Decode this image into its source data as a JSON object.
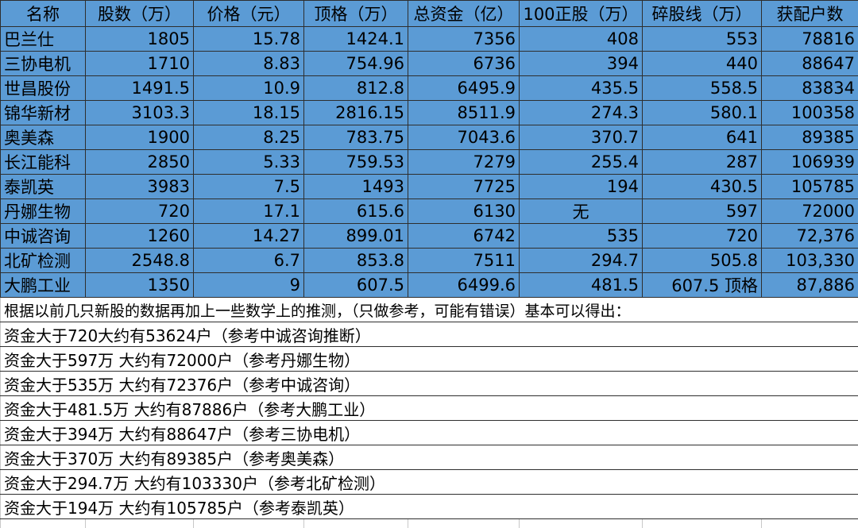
{
  "headers": [
    "名称",
    "股数（万）",
    "价格（元）",
    "顶格（万）",
    "总资金（亿）",
    "100正股（万）",
    "碎股线（万）",
    "获配户数"
  ],
  "rows": [
    [
      "巴兰仕",
      "1805",
      "15.78",
      "1424.1",
      "7356",
      "408",
      "553",
      "78816"
    ],
    [
      "三协电机",
      "1710",
      "8.83",
      "754.96",
      "6736",
      "394",
      "440",
      "88647"
    ],
    [
      "世昌股份",
      "1491.5",
      "10.9",
      "812.8",
      "6495.9",
      "435.5",
      "558.5",
      "83834"
    ],
    [
      "锦华新材",
      "3103.3",
      "18.15",
      "2816.15",
      "8511.9",
      "274.3",
      "580.1",
      "100358"
    ],
    [
      "奥美森",
      "1900",
      "8.25",
      "783.75",
      "7043.6",
      "370.7",
      "641",
      "89385"
    ],
    [
      "长江能科",
      "2850",
      "5.33",
      "759.53",
      "7279",
      "255.4",
      "287",
      "106939"
    ],
    [
      "泰凯英",
      "3983",
      "7.5",
      "1493",
      "7725",
      "194",
      "430.5",
      "105785"
    ],
    [
      "丹娜生物",
      "720",
      "17.1",
      "615.6",
      "6130",
      "无",
      "597",
      "72000"
    ],
    [
      "中诚咨询",
      "1260",
      "14.27",
      "899.01",
      "6742",
      "535",
      "720",
      "72,376"
    ],
    [
      "北矿检测",
      "2548.8",
      "6.7",
      "853.8",
      "7511",
      "294.7",
      "505.8",
      "103,330"
    ],
    [
      "大鹏工业",
      "1350",
      "9",
      "607.5",
      "6499.6",
      "481.5",
      "607.5 顶格",
      "87,886"
    ]
  ],
  "notes": [
    "根据以前几只新股的数据再加上一些数学上的推测，（只做参考，可能有错误）基本可以得出：",
    "资金大于720大约有53624户（参考中诚咨询推断）",
    "资金大于597万  大约有72000户（参考丹娜生物）",
    "资金大于535万  大约有72376户（参考中诚咨询）",
    "资金大于481.5万  大约有87886户（参考大鹏工业）",
    "资金大于394万  大约有88647户（参考三协电机）",
    "资金大于370万  大约有89385户（参考奥美森）",
    "资金大于294.7万  大约有103330户（参考北矿检测）",
    "资金大于194万  大约有105785户（参考泰凯英）"
  ],
  "colors": {
    "header_fill": "#5b9bd5",
    "grid_line": "#2e2e2e"
  }
}
